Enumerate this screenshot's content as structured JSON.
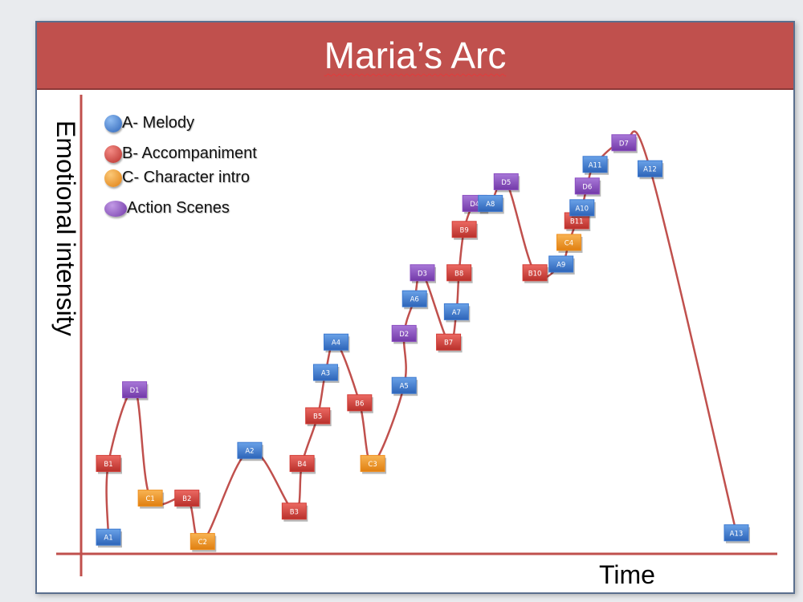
{
  "title": "Maria’s Arc",
  "colors": {
    "title_bar": "#c0504d",
    "line": "#c0504d",
    "axis": "#c0504d"
  },
  "legend": [
    {
      "label": "A- Melody",
      "color": "#3b78d0",
      "shape": "circle"
    },
    {
      "label": "B- Accompaniment",
      "color": "#d23b35",
      "shape": "circle"
    },
    {
      "label": "C- Character intro",
      "color": "#ef8f1e",
      "shape": "circle"
    },
    {
      "label": "Action Scenes",
      "color": "#8a4cc0",
      "shape": "oval"
    }
  ],
  "chart_data": {
    "type": "line",
    "xlabel": "Time",
    "ylabel": "Emotional intensity",
    "ylim": [
      0,
      100
    ],
    "categories_colors": {
      "A": "#3b78d0",
      "B": "#d23b35",
      "C": "#ef8f1e",
      "D": "#8a4cc0"
    },
    "series": [
      {
        "points": [
          {
            "label": "A1",
            "t": 1.0,
            "intensity": 2
          },
          {
            "label": "B1",
            "t": 1.0,
            "intensity": 19
          },
          {
            "label": "D1",
            "t": 2.0,
            "intensity": 36
          },
          {
            "label": "C1",
            "t": 2.6,
            "intensity": 11
          },
          {
            "label": "B2",
            "t": 4.0,
            "intensity": 11
          },
          {
            "label": "C2",
            "t": 4.6,
            "intensity": 1
          },
          {
            "label": "A2",
            "t": 6.4,
            "intensity": 22
          },
          {
            "label": "B3",
            "t": 8.1,
            "intensity": 8
          },
          {
            "label": "B4",
            "t": 8.4,
            "intensity": 19
          },
          {
            "label": "B5",
            "t": 9.0,
            "intensity": 30
          },
          {
            "label": "A3",
            "t": 9.3,
            "intensity": 40
          },
          {
            "label": "A4",
            "t": 9.7,
            "intensity": 47
          },
          {
            "label": "B6",
            "t": 10.6,
            "intensity": 33
          },
          {
            "label": "C3",
            "t": 11.1,
            "intensity": 19
          },
          {
            "label": "A5",
            "t": 12.3,
            "intensity": 37
          },
          {
            "label": "D2",
            "t": 12.3,
            "intensity": 49
          },
          {
            "label": "A6",
            "t": 12.7,
            "intensity": 57
          },
          {
            "label": "D3",
            "t": 13.0,
            "intensity": 63
          },
          {
            "label": "B7",
            "t": 14.0,
            "intensity": 47
          },
          {
            "label": "A7",
            "t": 14.3,
            "intensity": 54
          },
          {
            "label": "B8",
            "t": 14.4,
            "intensity": 63
          },
          {
            "label": "B9",
            "t": 14.6,
            "intensity": 73
          },
          {
            "label": "D4",
            "t": 15.0,
            "intensity": 79
          },
          {
            "label": "A8",
            "t": 15.6,
            "intensity": 79
          },
          {
            "label": "D5",
            "t": 16.2,
            "intensity": 84
          },
          {
            "label": "B10",
            "t": 17.3,
            "intensity": 63
          },
          {
            "label": "A9",
            "t": 18.3,
            "intensity": 65
          },
          {
            "label": "C4",
            "t": 18.6,
            "intensity": 70
          },
          {
            "label": "B11",
            "t": 18.9,
            "intensity": 75
          },
          {
            "label": "A10",
            "t": 19.1,
            "intensity": 78
          },
          {
            "label": "D6",
            "t": 19.3,
            "intensity": 83
          },
          {
            "label": "A11",
            "t": 19.6,
            "intensity": 88
          },
          {
            "label": "D7",
            "t": 20.7,
            "intensity": 93
          },
          {
            "label": "A12",
            "t": 21.7,
            "intensity": 87
          },
          {
            "label": "A13",
            "t": 25.0,
            "intensity": 3
          }
        ]
      }
    ]
  }
}
